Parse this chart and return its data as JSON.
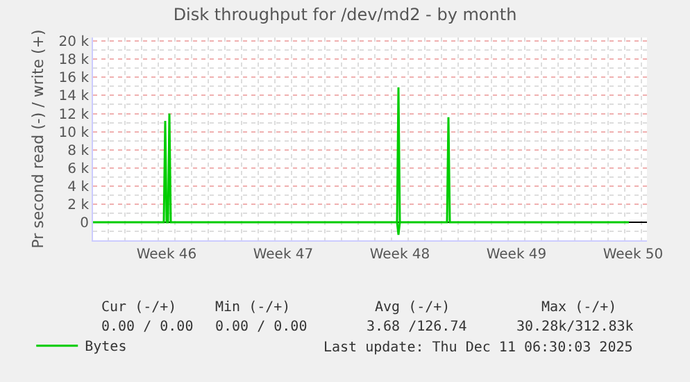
{
  "chart_data": {
    "type": "line",
    "title": "Disk throughput for /dev/md2 - by month",
    "ylabel": "Pr second read (-) / write (+)",
    "series": [
      {
        "name": "Bytes",
        "color": "#00cc00",
        "x": [
          "2025-11-09T02:00",
          "2025-11-13T08:00",
          "2025-11-13T10:00",
          "2025-11-13T12:00",
          "2025-11-13T14:00",
          "2025-11-13T16:00",
          "2025-11-13T18:00",
          "2025-11-27T08:00",
          "2025-11-27T10:00",
          "2025-11-27T12:00",
          "2025-11-30T08:00",
          "2025-11-30T10:00",
          "2025-11-30T12:00",
          "2025-12-11T06:00"
        ],
        "values": [
          0,
          0,
          11200,
          0,
          0,
          12000,
          0,
          0,
          14900,
          0,
          0,
          11600,
          0,
          0
        ]
      },
      {
        "color": "#00cc00",
        "x": [
          "2025-11-27T08:00",
          "2025-11-27T10:00",
          "2025-11-27T12:00"
        ],
        "values": [
          0,
          -1400,
          0
        ]
      }
    ],
    "xlim": [
      "2025-11-09T02:00",
      "2025-12-12T08:00"
    ],
    "xticks": [
      {
        "value": "2025-11-13T12:00",
        "label": "Week 46"
      },
      {
        "value": "2025-11-20T12:00",
        "label": "Week 47"
      },
      {
        "value": "2025-11-27T12:00",
        "label": "Week 48"
      },
      {
        "value": "2025-12-04T12:00",
        "label": "Week 49"
      },
      {
        "value": "2025-12-11T12:00",
        "label": "Week 50"
      }
    ],
    "ylim": [
      -2000,
      20400
    ],
    "yticks": [
      0,
      {
        "value": 2000,
        "label": "2 k"
      },
      {
        "value": 4000,
        "label": "4 k"
      },
      {
        "value": 6000,
        "label": "6 k"
      },
      {
        "value": 8000,
        "label": "8 k"
      },
      {
        "value": 10000,
        "label": "10 k"
      },
      {
        "value": 12000,
        "label": "12 k"
      },
      {
        "value": 14000,
        "label": "14 k"
      },
      {
        "value": 16000,
        "label": "16 k"
      },
      {
        "value": 18000,
        "label": "18 k"
      },
      {
        "value": 20000,
        "label": "20 k"
      }
    ],
    "grid": true,
    "legend": "bottom left",
    "marker": "none",
    "line_style": "solid",
    "annotations": [
      "Cur (-/+)",
      "Min (-/+)",
      "Avg (-/+)",
      "Max (-/+)",
      "0.00 / 0.00",
      "0.00 / 0.00",
      "3.68 /126.74",
      "30.28k/312.83k",
      "Last update: Thu Dec 11 06:30:03 2025"
    ]
  }
}
